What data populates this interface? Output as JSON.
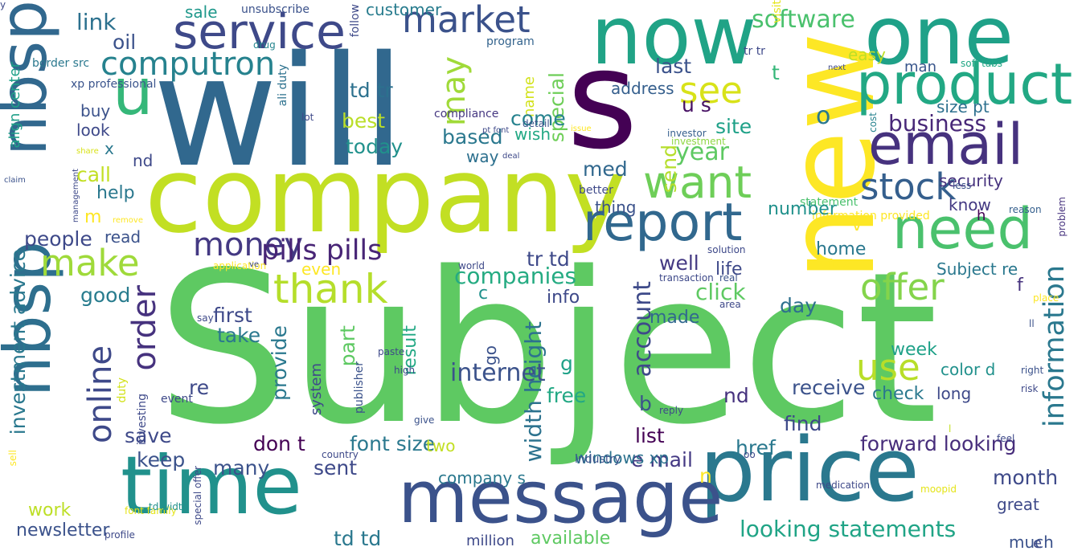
{
  "word_cloud": {
    "words": [
      {
        "text": "Subject",
        "color": "#5ec962"
      },
      {
        "text": "will",
        "color": "#31688e"
      },
      {
        "text": "s",
        "color": "#440154"
      },
      {
        "text": "company",
        "color": "#c2df23"
      },
      {
        "text": "new",
        "color": "#fde725"
      },
      {
        "text": "price",
        "color": "#2a788e"
      },
      {
        "text": "time",
        "color": "#21918c"
      },
      {
        "text": "message",
        "color": "#3b528b"
      },
      {
        "text": "now",
        "color": "#20a386"
      },
      {
        "text": "one",
        "color": "#1fa188"
      },
      {
        "text": "nbsp",
        "color": "#31688e"
      },
      {
        "text": "nbsp",
        "color": "#2e6f8e"
      },
      {
        "text": "u",
        "color": "#35b779"
      },
      {
        "text": "product",
        "color": "#22a884"
      },
      {
        "text": "email",
        "color": "#46327e"
      },
      {
        "text": "need",
        "color": "#4ac16d"
      },
      {
        "text": "report",
        "color": "#31688e"
      },
      {
        "text": "want",
        "color": "#6ece58"
      },
      {
        "text": "service",
        "color": "#3e4989"
      },
      {
        "text": "market",
        "color": "#3b528b"
      },
      {
        "text": "computron",
        "color": "#26828e"
      },
      {
        "text": "see",
        "color": "#d8e219"
      },
      {
        "text": "make",
        "color": "#9fda3a"
      },
      {
        "text": "thank",
        "color": "#b5de2b"
      },
      {
        "text": "money",
        "color": "#443983"
      },
      {
        "text": "pills pills",
        "color": "#482576"
      },
      {
        "text": "offer",
        "color": "#84d44b"
      },
      {
        "text": "information",
        "color": "#2a788e"
      },
      {
        "text": "stock",
        "color": "#355f8d"
      },
      {
        "text": "online",
        "color": "#3e4989"
      },
      {
        "text": "order",
        "color": "#46327e"
      },
      {
        "text": "use",
        "color": "#b8de29"
      },
      {
        "text": "may",
        "color": "#a0da39"
      },
      {
        "text": "software",
        "color": "#4ac16d"
      },
      {
        "text": "business",
        "color": "#482878"
      },
      {
        "text": "account",
        "color": "#3e4a89"
      },
      {
        "text": "width height",
        "color": "#2c728e"
      },
      {
        "text": "looking statements",
        "color": "#20a486"
      },
      {
        "text": "forward looking",
        "color": "#472d7b"
      },
      {
        "text": "companies",
        "color": "#25ab82"
      },
      {
        "text": "link",
        "color": "#2c718e"
      },
      {
        "text": "oil",
        "color": "#3b528b"
      },
      {
        "text": "customer",
        "color": "#287c8e"
      },
      {
        "text": "sale",
        "color": "#1f988b"
      },
      {
        "text": "unsubscribe",
        "color": "#3b528b"
      },
      {
        "text": "easy",
        "color": "#bddf26"
      },
      {
        "text": "man",
        "color": "#39568c"
      },
      {
        "text": "soft tabs",
        "color": "#22a785"
      },
      {
        "text": "xp professional",
        "color": "#3a548c"
      },
      {
        "text": "border src",
        "color": "#2a788e"
      },
      {
        "text": "program",
        "color": "#33638d"
      },
      {
        "text": "drug",
        "color": "#25858e"
      },
      {
        "text": "visit",
        "color": "#e4e419"
      },
      {
        "text": "follow",
        "color": "#3e4989"
      },
      {
        "text": "last",
        "color": "#3b528b"
      },
      {
        "text": "t",
        "color": "#35b779"
      },
      {
        "text": "address",
        "color": "#355f8d"
      },
      {
        "text": "td tr",
        "color": "#2c718e"
      },
      {
        "text": "special",
        "color": "#6ece58"
      },
      {
        "text": "name",
        "color": "#d2e21b"
      },
      {
        "text": "u s",
        "color": "#471164"
      },
      {
        "text": "size pt",
        "color": "#2d708e"
      },
      {
        "text": "align center",
        "color": "#1fa088"
      },
      {
        "text": "buy",
        "color": "#3b528b"
      },
      {
        "text": "look",
        "color": "#3e4989"
      },
      {
        "text": "best",
        "color": "#bade28"
      },
      {
        "text": "come",
        "color": "#26828e"
      },
      {
        "text": "compliance",
        "color": "#453781"
      },
      {
        "text": "wish",
        "color": "#22a884"
      },
      {
        "text": "based",
        "color": "#2a788e"
      },
      {
        "text": "today",
        "color": "#21918c"
      },
      {
        "text": "way",
        "color": "#2d708e"
      },
      {
        "text": "site",
        "color": "#1fa188"
      },
      {
        "text": "o",
        "color": "#2a788e"
      },
      {
        "text": "year",
        "color": "#5ec962"
      },
      {
        "text": "send",
        "color": "#b5de2b"
      },
      {
        "text": "med",
        "color": "#31688e"
      },
      {
        "text": "x",
        "color": "#2a788e"
      },
      {
        "text": "call",
        "color": "#c2df23"
      },
      {
        "text": "nd",
        "color": "#3e4989"
      },
      {
        "text": "help",
        "color": "#2a788e"
      },
      {
        "text": "m",
        "color": "#fde725"
      },
      {
        "text": "people",
        "color": "#3e4989"
      },
      {
        "text": "read",
        "color": "#3b528b"
      },
      {
        "text": "ali duty",
        "color": "#2c718e"
      },
      {
        "text": "lot",
        "color": "#3e4989"
      },
      {
        "text": "thing",
        "color": "#3b528b"
      },
      {
        "text": "better",
        "color": "#3e4989"
      },
      {
        "text": "statement",
        "color": "#4ac16d"
      },
      {
        "text": "investor",
        "color": "#355f8d"
      },
      {
        "text": "investment",
        "color": "#8fd744"
      },
      {
        "text": "security",
        "color": "#46327e"
      },
      {
        "text": "know",
        "color": "#443983"
      },
      {
        "text": "information provided",
        "color": "#fde725"
      },
      {
        "text": "h",
        "color": "#440154"
      },
      {
        "text": "reason",
        "color": "#355f8d"
      },
      {
        "text": "problem",
        "color": "#46327e"
      },
      {
        "text": "cost",
        "color": "#26828e"
      },
      {
        "text": "less",
        "color": "#3b528b"
      },
      {
        "text": "v",
        "color": "#fde725"
      },
      {
        "text": "home",
        "color": "#2a788e"
      },
      {
        "text": "number",
        "color": "#21918c"
      },
      {
        "text": "Subject re",
        "color": "#2a788e"
      },
      {
        "text": "tr td",
        "color": "#3e4989"
      },
      {
        "text": "well",
        "color": "#443983"
      },
      {
        "text": "life",
        "color": "#3e4989"
      },
      {
        "text": "click",
        "color": "#5ec962"
      },
      {
        "text": "info",
        "color": "#3e4989"
      },
      {
        "text": "made",
        "color": "#31688e"
      },
      {
        "text": "f",
        "color": "#46327e"
      },
      {
        "text": "day",
        "color": "#2d708e"
      },
      {
        "text": "first",
        "color": "#3e4989"
      },
      {
        "text": "take",
        "color": "#2a788e"
      },
      {
        "text": "c",
        "color": "#21918c"
      },
      {
        "text": "good",
        "color": "#287c8e"
      },
      {
        "text": "investment advice",
        "color": "#2a788e"
      },
      {
        "text": "result",
        "color": "#22a884"
      },
      {
        "text": "part",
        "color": "#5ec962"
      },
      {
        "text": "provide",
        "color": "#2a788e"
      },
      {
        "text": "internet",
        "color": "#3b528b"
      },
      {
        "text": "go",
        "color": "#3b528b"
      },
      {
        "text": "g",
        "color": "#1fa188"
      },
      {
        "text": "free",
        "color": "#22a884"
      },
      {
        "text": "re",
        "color": "#3e4989"
      },
      {
        "text": "week",
        "color": "#1fa188"
      },
      {
        "text": "color d",
        "color": "#21918c"
      },
      {
        "text": "long",
        "color": "#3e4989"
      },
      {
        "text": "check",
        "color": "#2a788e"
      },
      {
        "text": "receive",
        "color": "#3b528b"
      },
      {
        "text": "nd",
        "color": "#46327e"
      },
      {
        "text": "b",
        "color": "#3b528b"
      },
      {
        "text": "find",
        "color": "#3e4989"
      },
      {
        "text": "list",
        "color": "#440154"
      },
      {
        "text": "e mail",
        "color": "#443983"
      },
      {
        "text": "href",
        "color": "#2a788e"
      },
      {
        "text": "font size",
        "color": "#2a788e"
      },
      {
        "text": "save",
        "color": "#3e4989"
      },
      {
        "text": "don t",
        "color": "#440154"
      },
      {
        "text": "two",
        "color": "#c2df23"
      },
      {
        "text": "windows xp",
        "color": "#2c728e"
      },
      {
        "text": "many",
        "color": "#3b528b"
      },
      {
        "text": "sent",
        "color": "#3e4989"
      },
      {
        "text": "company s",
        "color": "#2a788e"
      },
      {
        "text": "month",
        "color": "#3e4989"
      },
      {
        "text": "great",
        "color": "#3e4989"
      },
      {
        "text": "work",
        "color": "#bddf26"
      },
      {
        "text": "newsletter",
        "color": "#3b528b"
      },
      {
        "text": "td td",
        "color": "#2a788e"
      },
      {
        "text": "available",
        "color": "#5ec962"
      },
      {
        "text": "million",
        "color": "#3e4989"
      },
      {
        "text": "much",
        "color": "#3b528b"
      },
      {
        "text": "e",
        "color": "#3e4989"
      },
      {
        "text": "even",
        "color": "#fde725"
      },
      {
        "text": "system",
        "color": "#3e4989"
      },
      {
        "text": "publisher",
        "color": "#3b528b"
      },
      {
        "text": "event",
        "color": "#3e4989"
      },
      {
        "text": "investing",
        "color": "#3e4989"
      },
      {
        "text": "duty",
        "color": "#d2e21b"
      },
      {
        "text": "free",
        "color": "#fde725"
      },
      {
        "text": "solution",
        "color": "#3e4989"
      },
      {
        "text": "transaction",
        "color": "#3e4989"
      },
      {
        "text": "industry",
        "color": "#3b528b"
      },
      {
        "text": "country",
        "color": "#3e4989"
      },
      {
        "text": "font family",
        "color": "#e4e419"
      },
      {
        "text": "special offer",
        "color": "#3e4989"
      },
      {
        "text": "td width",
        "color": "#21918c"
      },
      {
        "text": "profile",
        "color": "#3e4989"
      },
      {
        "text": "keep",
        "color": "#3b528b"
      },
      {
        "text": "n",
        "color": "#fde725"
      },
      {
        "text": "l",
        "color": "#c2df23"
      },
      {
        "text": "medication",
        "color": "#3e4989"
      },
      {
        "text": "moopid",
        "color": "#e4e419"
      },
      {
        "text": "place",
        "color": "#fde725"
      },
      {
        "text": "risk",
        "color": "#3e4989"
      },
      {
        "text": "right",
        "color": "#3b528b"
      },
      {
        "text": "reply",
        "color": "#3e4989"
      },
      {
        "text": "feel",
        "color": "#3e4989"
      },
      {
        "text": "claim",
        "color": "#3b528b"
      },
      {
        "text": "management",
        "color": "#3e4989"
      },
      {
        "text": "share",
        "color": "#d8e219"
      },
      {
        "text": "detail",
        "color": "#3b528b"
      },
      {
        "text": "deal",
        "color": "#3e4989"
      },
      {
        "text": "pt font",
        "color": "#3e4989"
      },
      {
        "text": "issue",
        "color": "#fde725"
      },
      {
        "text": "next",
        "color": "#3e4989"
      },
      {
        "text": "application",
        "color": "#fde725"
      },
      {
        "text": "world",
        "color": "#3e4989"
      },
      {
        "text": "real",
        "color": "#3b528b"
      },
      {
        "text": "area",
        "color": "#3e4989"
      },
      {
        "text": "paste",
        "color": "#3e4989"
      },
      {
        "text": "high",
        "color": "#3e4989"
      },
      {
        "text": "give",
        "color": "#3b528b"
      },
      {
        "text": "say",
        "color": "#3e4989"
      },
      {
        "text": "sell",
        "color": "#fde725"
      },
      {
        "text": "remove",
        "color": "#fde725"
      },
      {
        "text": "ve",
        "color": "#3e4989"
      },
      {
        "text": "ll",
        "color": "#3b528b"
      },
      {
        "text": "oo",
        "color": "#3e4989"
      },
      {
        "text": "tr tr",
        "color": "#3e4989"
      },
      {
        "text": "y",
        "color": "#3e4989"
      }
    ]
  }
}
